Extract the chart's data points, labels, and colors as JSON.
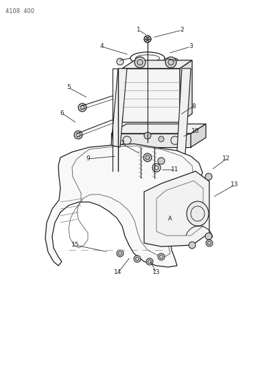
{
  "header": "4108  400",
  "bg_color": "#ffffff",
  "lc": "#1a1a1a",
  "tc": "#1a1a1a",
  "fig_width": 4.08,
  "fig_height": 5.33,
  "dpi": 100
}
